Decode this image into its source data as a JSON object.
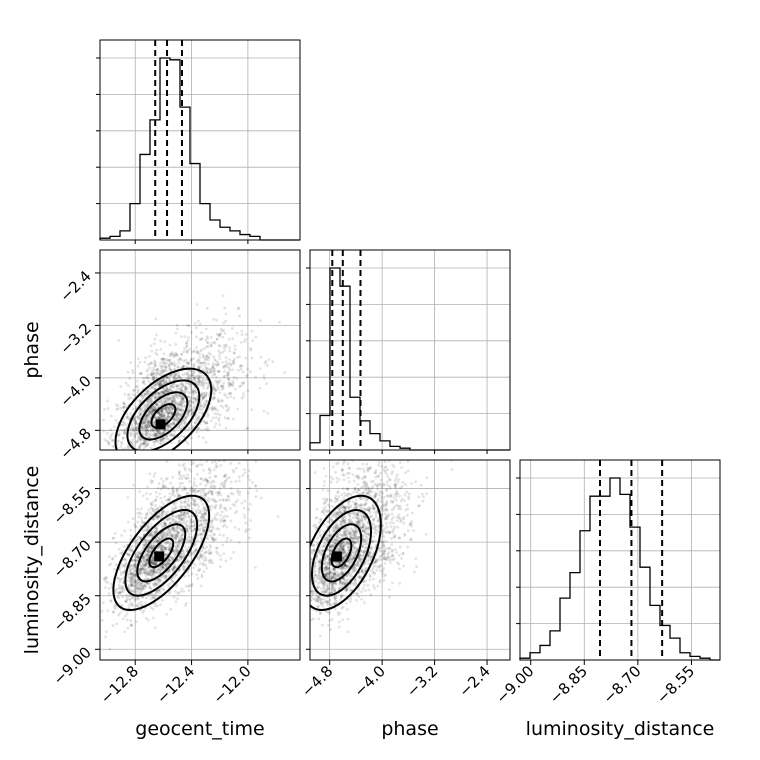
{
  "chart_data": {
    "type": "corner",
    "parameters": [
      "geocent_time",
      "phase",
      "luminosity_distance"
    ],
    "axis_labels": [
      "geocent_time",
      "phase",
      "luminosity_distance"
    ],
    "ranges": [
      [
        -13.05,
        -11.63
      ],
      [
        -5.1,
        -2.05
      ],
      [
        -9.03,
        -8.47
      ]
    ],
    "ticks": [
      {
        "values": [
          -12.8,
          -12.4,
          -12.0
        ],
        "labels": [
          "−12.8",
          "−12.4",
          "−12.0"
        ]
      },
      {
        "values": [
          -4.8,
          -4.0,
          -3.2,
          -2.4
        ],
        "labels": [
          "−4.8",
          "−4.0",
          "−3.2",
          "−2.4"
        ]
      },
      {
        "values": [
          -9.0,
          -8.85,
          -8.7,
          -8.55
        ],
        "labels": [
          "−9.00",
          "−8.85",
          "−8.70",
          "−8.55"
        ]
      }
    ],
    "marginals": [
      {
        "parameter": "geocent_time",
        "bin_edges": [
          -13.05,
          -12.979,
          -12.908,
          -12.837,
          -12.766,
          -12.695,
          -12.624,
          -12.553,
          -12.482,
          -12.411,
          -12.34,
          -12.269,
          -12.198,
          -12.127,
          -12.056,
          -11.985,
          -11.914,
          -11.843,
          -11.772,
          -11.701,
          -11.63
        ],
        "counts": [
          1,
          2,
          5,
          20,
          47,
          66,
          100,
          99,
          73,
          42,
          20,
          11,
          7,
          5,
          3,
          2,
          0,
          0,
          0,
          0
        ],
        "quantiles": [
          -12.658,
          -12.574,
          -12.468
        ]
      },
      {
        "parameter": "phase",
        "bin_edges": [
          -5.1,
          -4.9475,
          -4.795,
          -4.6425,
          -4.49,
          -4.3375,
          -4.185,
          -4.0325,
          -3.88,
          -3.7275,
          -3.575,
          -3.4225,
          -3.27,
          -3.1175,
          -2.965,
          -2.8125,
          -2.66,
          -2.5075,
          -2.355,
          -2.2025,
          -2.05
        ],
        "counts": [
          4,
          19,
          100,
          90,
          29,
          16,
          9,
          5,
          2,
          1,
          0,
          0,
          0,
          0,
          0,
          0,
          0,
          0,
          0,
          0
        ],
        "quantiles": [
          -4.76,
          -4.6,
          -4.33
        ]
      },
      {
        "parameter": "luminosity_distance",
        "bin_edges": [
          -9.03,
          -9.002,
          -8.974,
          -8.946,
          -8.918,
          -8.89,
          -8.862,
          -8.834,
          -8.806,
          -8.778,
          -8.75,
          -8.722,
          -8.694,
          -8.666,
          -8.638,
          -8.61,
          -8.582,
          -8.554,
          -8.526,
          -8.498,
          -8.47
        ],
        "counts": [
          1,
          4,
          8,
          16,
          34,
          48,
          71,
          90,
          90,
          100,
          91,
          73,
          51,
          30,
          19,
          12,
          4,
          2,
          1,
          0
        ],
        "quantiles": [
          -8.806,
          -8.718,
          -8.632
        ]
      }
    ],
    "pairs": [
      {
        "x": "geocent_time",
        "y": "phase",
        "mean": [
          -12.58,
          -4.45
        ],
        "std": [
          0.17,
          0.36
        ],
        "correlation": 0.55,
        "peak": [
          -12.62,
          -4.71
        ],
        "contour_levels_sigma": [
          0.5,
          1.0,
          1.5,
          2.0
        ]
      },
      {
        "x": "geocent_time",
        "y": "luminosity_distance",
        "mean": [
          -12.6,
          -8.72
        ],
        "std": [
          0.17,
          0.08
        ],
        "correlation": 0.65,
        "peak": [
          -12.63,
          -8.74
        ],
        "contour_levels_sigma": [
          0.5,
          1.0,
          1.5,
          2.0
        ]
      },
      {
        "x": "phase",
        "y": "luminosity_distance",
        "mean": [
          -4.55,
          -8.72
        ],
        "std": [
          0.3,
          0.08
        ],
        "correlation": 0.5,
        "peak": [
          -4.69,
          -8.74
        ],
        "contour_levels_sigma": [
          0.5,
          1.0,
          1.5,
          2.0
        ]
      }
    ],
    "grid": true,
    "legend": "none"
  }
}
